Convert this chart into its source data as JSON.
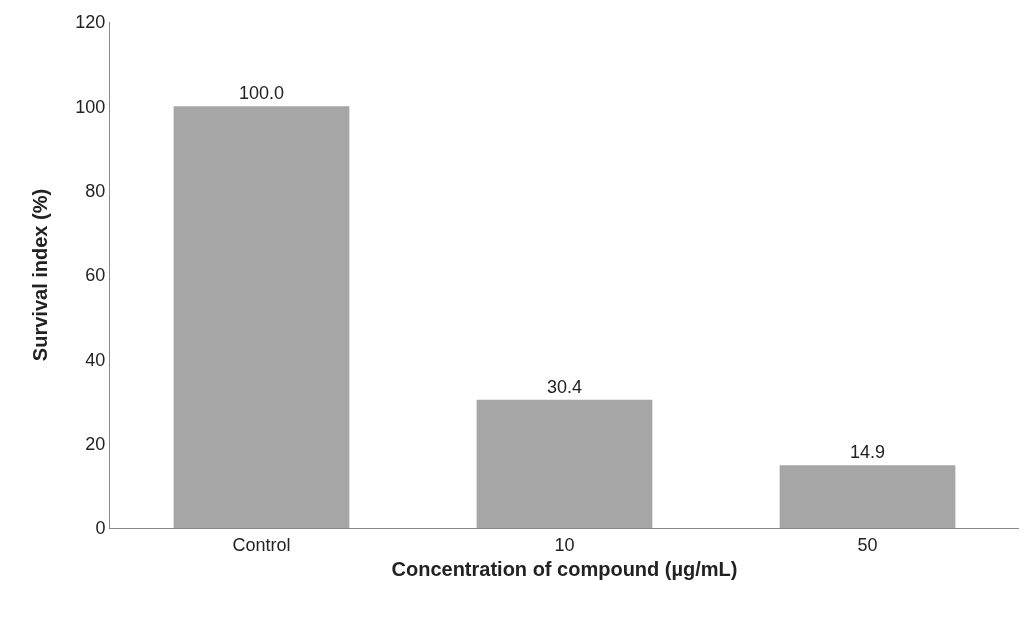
{
  "chart_data": {
    "type": "bar",
    "xlabel": "Concentration of compound (µg/mL)",
    "ylabel": "Survival index (%)",
    "categories": [
      "Control",
      "10",
      "50"
    ],
    "values": [
      100.0,
      30.4,
      14.9
    ],
    "value_labels": [
      "100.0",
      "30.4",
      "14.9"
    ],
    "color": "#a6a6a6",
    "ylim": [
      0,
      120
    ],
    "yticks": [
      0,
      20,
      40,
      60,
      80,
      100,
      120
    ]
  }
}
